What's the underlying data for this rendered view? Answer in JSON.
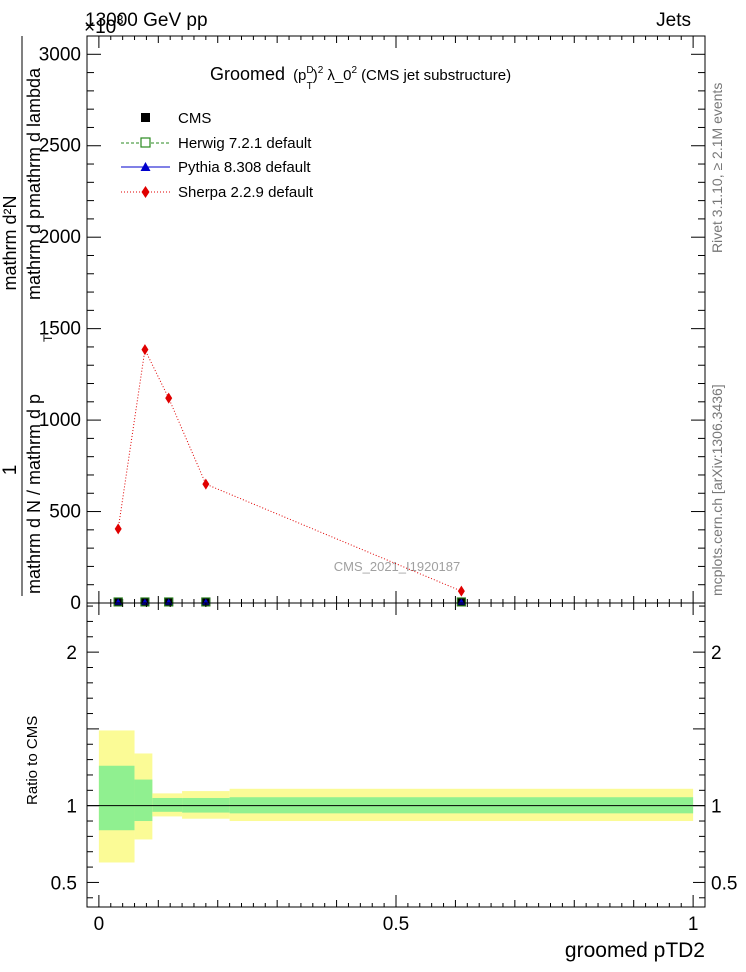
{
  "header": {
    "left": "13000 GeV pp",
    "right": "Jets",
    "exponent_label": "×10",
    "exponent_power": "3"
  },
  "side_labels": {
    "rivet": "Rivet 3.1.10, ≥ 2.1M events",
    "mcplots": "mcplots.cern.ch [arXiv:1306.3436]"
  },
  "watermark": "CMS_2021_I1920187",
  "title": {
    "prefix": "Groomed",
    "p": "(p",
    "sup_d": "D",
    "sub_t": "T",
    "close": ")",
    "pow2": "2",
    "lambda": "λ_0",
    "lambda_pow": "2",
    "suffix": "(CMS jet substructure)"
  },
  "ylabel": {
    "one": "1",
    "top": "mathrm d²N",
    "denom": "mathrm d N / mathrm d p",
    "denom_mid": "mathrm d p",
    "denom_right": "mathrm d lambda",
    "sub_t": "T"
  },
  "ratio_ylabel": "Ratio to CMS",
  "xlabel": "groomed pTD2",
  "colors": {
    "cms": "#000000",
    "herwig": "#2a8a1f",
    "pythia": "#0000cc",
    "sherpa": "#e00000",
    "band_inner": "#90f090",
    "band_outer": "#fbfb96"
  },
  "chart_data": [
    {
      "type": "line",
      "xlim": [
        -0.02,
        1.02
      ],
      "ylim": [
        0,
        3100
      ],
      "yticks": [
        0,
        500,
        1000,
        1500,
        2000,
        2500,
        3000
      ],
      "ytick_labels": [
        "0",
        "500",
        "1000",
        "1500",
        "2000",
        "2500",
        "3000"
      ],
      "legend_placement": "top-left",
      "series": [
        {
          "name": "CMS",
          "marker": "square",
          "x": [
            0.0325,
            0.0775,
            0.1175,
            0.18,
            0.61
          ],
          "y": [
            3,
            3,
            3,
            3,
            3
          ]
        },
        {
          "name": "Herwig 7.2.1 default",
          "marker": "open-square",
          "x": [
            0.0325,
            0.0775,
            0.1175,
            0.18,
            0.61
          ],
          "y": [
            3,
            3,
            3,
            3,
            3
          ]
        },
        {
          "name": "Pythia 8.308 default",
          "marker": "triangle",
          "x": [
            0.0325,
            0.0775,
            0.1175,
            0.18,
            0.61
          ],
          "y": [
            3,
            3,
            3,
            3,
            3
          ]
        },
        {
          "name": "Sherpa 2.2.9 default",
          "marker": "diamond",
          "x": [
            0.0325,
            0.0775,
            0.1175,
            0.18,
            0.61
          ],
          "y": [
            405,
            1385,
            1120,
            650,
            65
          ]
        }
      ]
    },
    {
      "type": "area",
      "ylabel": "Ratio to CMS",
      "xlabel": "groomed pTD2",
      "xlim": [
        -0.02,
        1.02
      ],
      "ylim": [
        0.34,
        2.32
      ],
      "yticks": [
        0.5,
        1,
        2
      ],
      "ytick_labels": [
        "0.5",
        "1",
        "2"
      ],
      "xticks": [
        0,
        0.5,
        1
      ],
      "xtick_labels": [
        "0",
        "0.5",
        "1"
      ],
      "bins": [
        {
          "x0": 0.0,
          "x1": 0.06,
          "inner": [
            0.84,
            1.26
          ],
          "outer": [
            0.63,
            1.49
          ]
        },
        {
          "x0": 0.06,
          "x1": 0.09,
          "inner": [
            0.9,
            1.17
          ],
          "outer": [
            0.78,
            1.34
          ]
        },
        {
          "x0": 0.09,
          "x1": 0.14,
          "inner": [
            0.96,
            1.05
          ],
          "outer": [
            0.93,
            1.08
          ]
        },
        {
          "x0": 0.14,
          "x1": 0.22,
          "inner": [
            0.955,
            1.05
          ],
          "outer": [
            0.915,
            1.095
          ]
        },
        {
          "x0": 0.22,
          "x1": 1.0,
          "inner": [
            0.95,
            1.055
          ],
          "outer": [
            0.9,
            1.11
          ]
        }
      ]
    }
  ]
}
